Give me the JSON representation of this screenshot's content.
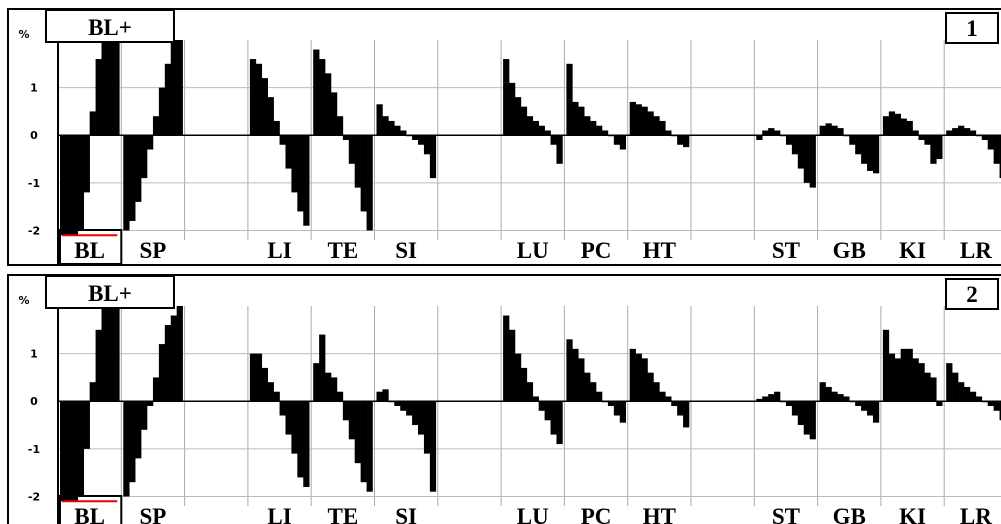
{
  "chart_data": [
    {
      "type": "bar",
      "title": "BL+",
      "panel": 1,
      "y_label": "%",
      "ylim": [
        -2.2,
        2
      ],
      "yticks": [
        -2,
        -1,
        0,
        1
      ],
      "grid": true,
      "color": "#000000",
      "categories": [
        "BL",
        "SP",
        null,
        "LI",
        "TE",
        "SI",
        null,
        "LU",
        "PC",
        "HT",
        null,
        "ST",
        "GB",
        "KI",
        "LR"
      ],
      "values": [
        [
          -2.1,
          -2.1,
          -2.1,
          -2.0,
          -1.2,
          0.5,
          1.6,
          2.0,
          2.0,
          2.0
        ],
        [
          -2.0,
          -1.8,
          -1.4,
          -0.9,
          -0.3,
          0.4,
          1.0,
          1.5,
          2.0,
          2.0
        ],
        null,
        [
          1.6,
          1.5,
          1.2,
          0.8,
          0.3,
          -0.2,
          -0.7,
          -1.2,
          -1.6,
          -1.9
        ],
        [
          1.8,
          1.6,
          1.3,
          0.9,
          0.4,
          -0.1,
          -0.6,
          -1.1,
          -1.6,
          -2.0
        ],
        [
          0.65,
          0.4,
          0.3,
          0.2,
          0.1,
          0,
          -0.1,
          -0.2,
          -0.4,
          -0.9
        ],
        null,
        [
          1.6,
          1.1,
          0.8,
          0.6,
          0.4,
          0.3,
          0.2,
          0.1,
          -0.2,
          -0.6
        ],
        [
          1.5,
          0.7,
          0.6,
          0.4,
          0.3,
          0.2,
          0.1,
          0,
          -0.2,
          -0.3
        ],
        [
          0.7,
          0.65,
          0.6,
          0.5,
          0.4,
          0.3,
          0.1,
          0,
          -0.2,
          -0.25
        ],
        null,
        [
          -0.1,
          0.1,
          0.15,
          0.1,
          0,
          -0.2,
          -0.4,
          -0.7,
          -1.0,
          -1.1
        ],
        [
          0.2,
          0.25,
          0.2,
          0.15,
          0,
          -0.2,
          -0.4,
          -0.6,
          -0.75,
          -0.8
        ],
        [
          0.4,
          0.5,
          0.45,
          0.35,
          0.3,
          0.1,
          -0.1,
          -0.2,
          -0.6,
          -0.5
        ],
        [
          0.1,
          0.15,
          0.2,
          0.15,
          0.1,
          0,
          -0.1,
          -0.3,
          -0.6,
          -0.9
        ]
      ]
    },
    {
      "type": "bar",
      "title": "BL+",
      "panel": 2,
      "y_label": "%",
      "ylim": [
        -2.2,
        2
      ],
      "yticks": [
        -2,
        -1,
        0,
        1
      ],
      "grid": true,
      "color": "#000000",
      "categories": [
        "BL",
        "SP",
        null,
        "LI",
        "TE",
        "SI",
        null,
        "LU",
        "PC",
        "HT",
        null,
        "ST",
        "GB",
        "KI",
        "LR"
      ],
      "values": [
        [
          -2.1,
          -2.1,
          -2.1,
          -2.0,
          -1.0,
          0.4,
          1.5,
          2.0,
          2.0,
          2.0
        ],
        [
          -2.0,
          -1.7,
          -1.2,
          -0.6,
          -0.1,
          0.5,
          1.2,
          1.6,
          1.8,
          2.0
        ],
        null,
        [
          1.0,
          1.0,
          0.7,
          0.4,
          0.2,
          -0.3,
          -0.7,
          -1.1,
          -1.6,
          -1.8
        ],
        [
          0.8,
          1.4,
          0.6,
          0.5,
          0.2,
          -0.4,
          -0.8,
          -1.3,
          -1.7,
          -1.9
        ],
        [
          0.2,
          0.25,
          0,
          -0.1,
          -0.2,
          -0.3,
          -0.5,
          -0.7,
          -1.1,
          -1.9
        ],
        null,
        [
          1.8,
          1.5,
          1.0,
          0.7,
          0.4,
          0.1,
          -0.2,
          -0.4,
          -0.7,
          -0.9
        ],
        [
          1.3,
          1.1,
          0.9,
          0.6,
          0.4,
          0.2,
          0,
          -0.1,
          -0.3,
          -0.45
        ],
        [
          1.1,
          1.0,
          0.9,
          0.6,
          0.4,
          0.2,
          0.1,
          -0.1,
          -0.3,
          -0.55
        ],
        null,
        [
          0.05,
          0.1,
          0.15,
          0.2,
          0,
          -0.1,
          -0.3,
          -0.5,
          -0.7,
          -0.8
        ],
        [
          0.4,
          0.3,
          0.2,
          0.15,
          0.1,
          0,
          -0.1,
          -0.2,
          -0.3,
          -0.45
        ],
        [
          1.5,
          1.0,
          0.9,
          1.1,
          1.1,
          0.9,
          0.8,
          0.6,
          0.5,
          -0.1
        ],
        [
          0.8,
          0.6,
          0.4,
          0.3,
          0.2,
          0.1,
          0,
          -0.1,
          -0.2,
          -0.4
        ]
      ]
    }
  ]
}
